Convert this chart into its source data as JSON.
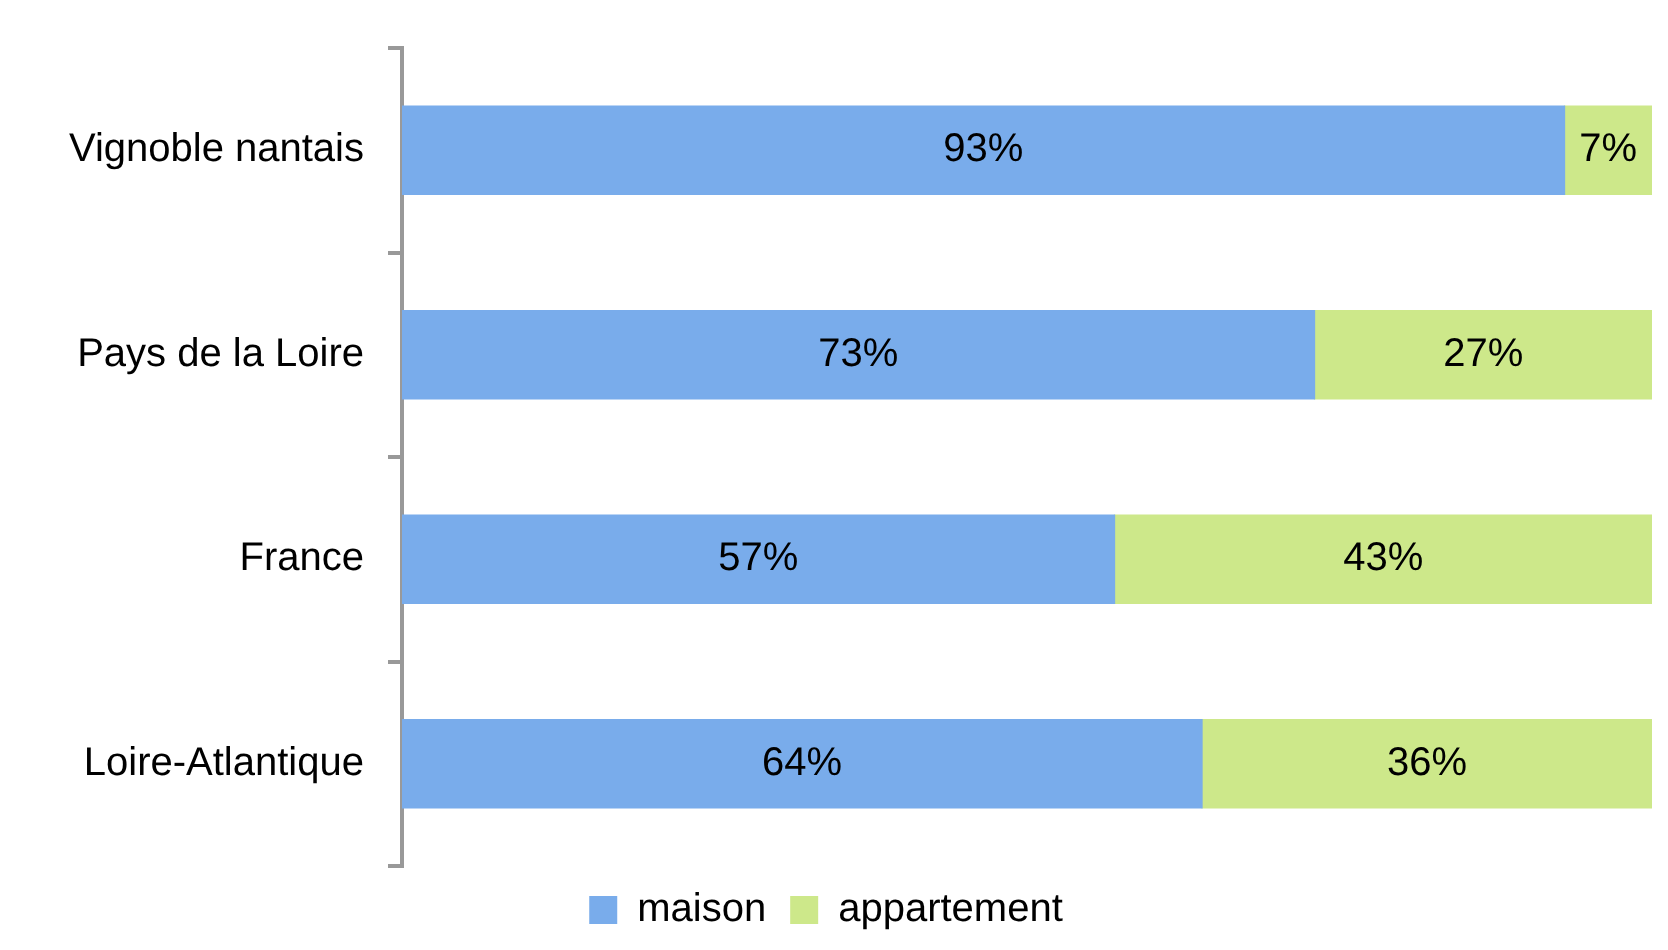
{
  "chart_data": {
    "type": "bar",
    "orientation": "horizontal",
    "stacked": true,
    "categories": [
      "Vignoble nantais",
      "Pays de la Loire",
      "France",
      "Loire-Atlantique"
    ],
    "series": [
      {
        "name": "maison",
        "color": "#79aceb",
        "values": [
          93,
          73,
          57,
          64
        ],
        "value_labels": [
          "93%",
          "73%",
          "57%",
          "64%"
        ]
      },
      {
        "name": "appartement",
        "color": "#cde88a",
        "values": [
          7,
          27,
          43,
          36
        ],
        "value_labels": [
          "7%",
          "27%",
          "43%",
          "36%"
        ]
      }
    ],
    "xlim": [
      0,
      100
    ],
    "legend": "bottom",
    "tick_labels": "y"
  }
}
